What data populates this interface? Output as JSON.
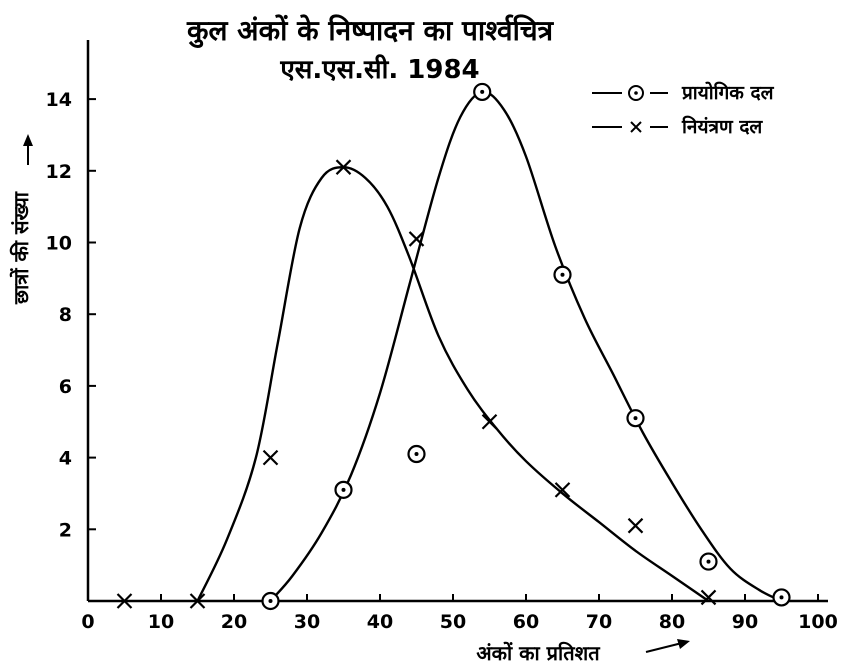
{
  "chart_data": {
    "type": "line",
    "title": "कुल अंकों के निष्पादन का पार्श्वचित्र",
    "subtitle": "एस.एस.सी. 1984",
    "xlabel": "अंकों का प्रतिशत",
    "ylabel": "छात्रों की संख्या",
    "xlim": [
      0,
      100
    ],
    "ylim": [
      0,
      15
    ],
    "x_ticks": [
      "0",
      "10",
      "20",
      "30",
      "40",
      "50",
      "60",
      "70",
      "80",
      "90",
      "100"
    ],
    "y_ticks": [
      "2",
      "4",
      "6",
      "8",
      "10",
      "12",
      "14"
    ],
    "legend_position": "top-right",
    "grid": false,
    "series": [
      {
        "name": "प्रायोगिक दल",
        "marker": "circle-dot",
        "x": [
          25,
          35,
          45,
          54,
          65,
          75,
          85,
          95
        ],
        "y": [
          0,
          3.1,
          4.1,
          14.2,
          9.1,
          5.1,
          1.1,
          0.1
        ],
        "curve_x": [
          25,
          28,
          32,
          36,
          40,
          44,
          48,
          51,
          54,
          57,
          60,
          64,
          68,
          72,
          76,
          80,
          84,
          88,
          92,
          95
        ],
        "curve_y": [
          0,
          0.7,
          1.9,
          3.5,
          5.8,
          8.8,
          11.8,
          13.5,
          14.2,
          13.7,
          12.4,
          9.9,
          7.9,
          6.3,
          4.7,
          3.3,
          2.0,
          0.9,
          0.3,
          0
        ]
      },
      {
        "name": "नियंत्रण दल",
        "marker": "x",
        "x": [
          5,
          15,
          25,
          35,
          45,
          55,
          65,
          75,
          85
        ],
        "y": [
          0,
          0,
          4.0,
          12.1,
          10.1,
          5.0,
          3.1,
          2.1,
          0.1
        ],
        "curve_x": [
          15,
          19,
          23,
          26,
          29,
          32,
          35,
          38,
          41,
          44,
          48,
          52,
          56,
          60,
          65,
          70,
          75,
          80,
          85
        ],
        "curve_y": [
          0,
          1.7,
          4.0,
          7.2,
          10.4,
          11.8,
          12.1,
          11.8,
          11.0,
          9.6,
          7.4,
          5.9,
          4.8,
          3.9,
          3.0,
          2.2,
          1.4,
          0.7,
          0
        ]
      }
    ],
    "ink_color": "#000000",
    "background_color": "#ffffff"
  }
}
